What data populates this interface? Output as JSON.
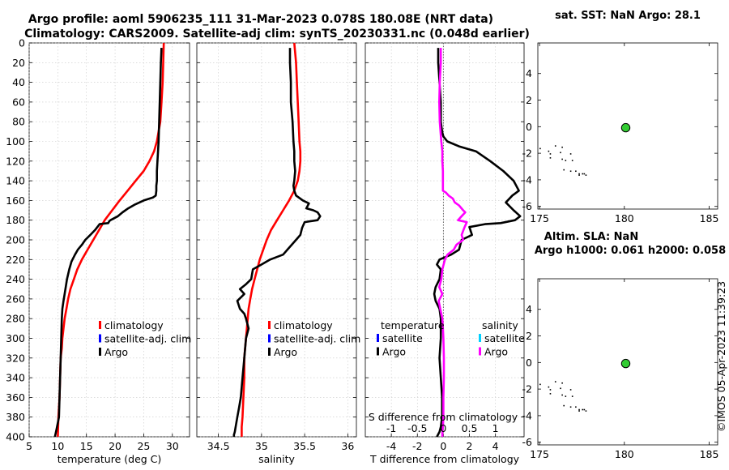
{
  "title_line1": "Argo profile: aoml 5906235_111 31-Mar-2023 0.078S 180.08E (NRT data)",
  "title_line2": "Climatology: CARS2009. Satellite-adj clim: synTS_20230331.nc (0.048d earlier)",
  "watermark": "©IMOS 05-Apr-2023 11:39:23",
  "colors": {
    "climatology": "#ff0000",
    "satellite_adj": "#0000ff",
    "argo": "#000000",
    "sal_satellite": "#00d0ff",
    "sal_argo": "#ff00ff",
    "marker": "#33cc33"
  },
  "chart_data": [
    {
      "id": "temperature",
      "type": "line",
      "xlabel": "temperature (deg C)",
      "xlim": [
        5,
        33
      ],
      "xticks": [
        5,
        10,
        15,
        20,
        25,
        30
      ],
      "ylim": [
        0,
        400
      ],
      "yticks": [
        0,
        20,
        40,
        60,
        80,
        100,
        120,
        140,
        160,
        180,
        200,
        220,
        240,
        260,
        280,
        300,
        320,
        340,
        360,
        380,
        400
      ],
      "ytick_labels_shown": true,
      "grid": true,
      "legend": [
        "climatology",
        "satellite-adj. clim",
        "Argo"
      ],
      "series": [
        {
          "name": "climatology",
          "color": "#ff0000",
          "x": [
            28.5,
            28.4,
            28.3,
            28.1,
            27.9,
            27.6,
            27.3,
            26.8,
            26.0,
            25.0,
            23.6,
            22.2,
            20.8,
            19.5,
            18.2,
            17.2,
            16.2,
            15.2,
            14.2,
            13.4,
            12.8,
            12.2,
            11.8,
            11.5,
            11.2,
            11.0,
            10.8,
            10.7,
            10.5,
            10.4,
            10.3,
            10.2,
            10.1,
            10.0
          ],
          "y": [
            0,
            20,
            40,
            60,
            80,
            90,
            100,
            110,
            120,
            130,
            140,
            150,
            160,
            170,
            180,
            190,
            200,
            210,
            220,
            230,
            240,
            250,
            260,
            270,
            280,
            290,
            300,
            310,
            320,
            340,
            360,
            370,
            380,
            400
          ]
        },
        {
          "name": "Argo",
          "color": "#000000",
          "x": [
            28.1,
            28.0,
            27.9,
            27.8,
            27.7,
            27.6,
            27.5,
            27.4,
            27.3,
            27.3,
            27.2,
            27.2,
            27.1,
            26.6,
            25.0,
            23.5,
            22.3,
            21.3,
            20.5,
            19.2,
            19.0,
            18.8,
            17.3,
            16.5,
            15.5,
            14.8,
            14.2,
            13.5,
            13.0,
            12.4,
            12.0,
            11.6,
            11.2,
            11.0,
            10.8,
            10.7,
            10.6,
            10.5,
            10.4,
            10.3,
            10.2,
            9.8,
            9.5
          ],
          "y": [
            5,
            20,
            40,
            60,
            80,
            100,
            110,
            120,
            130,
            140,
            145,
            150,
            155,
            157,
            160,
            164,
            168,
            172,
            176,
            180,
            181,
            183,
            184,
            190,
            196,
            200,
            205,
            210,
            215,
            222,
            230,
            240,
            255,
            262,
            270,
            280,
            300,
            320,
            340,
            360,
            380,
            392,
            400
          ]
        }
      ]
    },
    {
      "id": "salinity",
      "type": "line",
      "xlabel": "salinity",
      "xlim": [
        34.25,
        36.1
      ],
      "xticks": [
        34.5,
        35,
        35.5,
        36
      ],
      "ylim": [
        0,
        400
      ],
      "ytick_labels_shown": false,
      "grid": true,
      "legend": [
        "climatology",
        "satellite-adj. clim",
        "Argo"
      ],
      "series": [
        {
          "name": "climatology",
          "color": "#ff0000",
          "x": [
            35.38,
            35.4,
            35.41,
            35.42,
            35.43,
            35.44,
            35.45,
            35.45,
            35.44,
            35.42,
            35.38,
            35.32,
            35.25,
            35.18,
            35.11,
            35.06,
            35.02,
            34.98,
            34.95,
            34.92,
            34.89,
            34.87,
            34.85,
            34.84,
            34.83,
            34.82,
            34.81,
            34.8,
            34.8,
            34.79,
            34.78,
            34.77,
            34.77
          ],
          "y": [
            0,
            20,
            40,
            60,
            80,
            100,
            110,
            120,
            130,
            140,
            150,
            160,
            170,
            180,
            190,
            200,
            210,
            220,
            230,
            240,
            250,
            260,
            270,
            280,
            290,
            300,
            310,
            320,
            340,
            360,
            380,
            390,
            400
          ]
        },
        {
          "name": "Argo",
          "color": "#000000",
          "x": [
            35.33,
            35.33,
            35.34,
            35.34,
            35.36,
            35.37,
            35.38,
            35.38,
            35.39,
            35.38,
            35.37,
            35.38,
            35.4,
            35.48,
            35.55,
            35.52,
            35.6,
            35.65,
            35.68,
            35.65,
            35.5,
            35.47,
            35.45,
            35.4,
            35.35,
            35.3,
            35.25,
            35.1,
            35.0,
            34.9,
            34.88,
            34.82,
            34.75,
            34.8,
            34.72,
            34.75,
            34.8,
            34.82,
            34.85,
            34.82,
            34.8,
            34.78,
            34.76,
            34.74,
            34.72,
            34.7,
            34.69,
            34.68,
            34.68
          ],
          "y": [
            5,
            20,
            40,
            60,
            80,
            100,
            110,
            120,
            130,
            140,
            145,
            150,
            155,
            160,
            163,
            168,
            170,
            172,
            176,
            180,
            182,
            188,
            195,
            200,
            205,
            210,
            215,
            220,
            225,
            230,
            240,
            245,
            250,
            255,
            262,
            270,
            275,
            280,
            290,
            300,
            320,
            340,
            360,
            370,
            380,
            390,
            395,
            398,
            400
          ]
        }
      ]
    },
    {
      "id": "difference",
      "type": "line",
      "xlabel": "T difference from climatology",
      "xlabel_top": "S difference from climatology",
      "xlim": [
        -6,
        6.2
      ],
      "xticks": [
        -4,
        -2,
        0,
        2,
        4
      ],
      "xlim_top": [
        -1.5,
        1.55
      ],
      "xticks_top": [
        -1,
        -0.5,
        0,
        0.5,
        1
      ],
      "xtick_labels_top": [
        "-1",
        "-0.5",
        "0",
        "0.5",
        "1"
      ],
      "ylim": [
        0,
        400
      ],
      "ytick_labels_shown": false,
      "grid": true,
      "legend_temperature_title": "temperature",
      "legend_salinity_title": "salinity",
      "legend_temperature": [
        "satellite",
        "Argo"
      ],
      "legend_salinity": [
        "satellite",
        "Argo"
      ],
      "series": [
        {
          "name": "T diff Argo",
          "color": "#000000",
          "x": [
            -0.4,
            -0.4,
            -0.3,
            -0.2,
            -0.2,
            -0.1,
            0.0,
            0.3,
            1.2,
            2.5,
            3.6,
            4.6,
            5.4,
            5.8,
            5.3,
            4.8,
            5.4,
            5.9,
            5.5,
            4.4,
            3.2,
            2.0,
            2.2,
            1.4,
            1.2,
            0.6,
            -0.3,
            -0.5,
            -0.2,
            -0.3,
            -0.6,
            -0.7,
            -0.6,
            -0.3,
            -0.2,
            -0.2,
            -0.3,
            -0.2,
            -0.1,
            -0.1,
            -0.2,
            -0.3,
            -0.5
          ],
          "y": [
            5,
            20,
            40,
            60,
            80,
            90,
            95,
            100,
            105,
            110,
            120,
            130,
            140,
            150,
            155,
            162,
            170,
            176,
            180,
            183,
            184,
            187,
            195,
            200,
            210,
            215,
            220,
            225,
            230,
            240,
            248,
            255,
            262,
            270,
            280,
            300,
            320,
            340,
            360,
            380,
            390,
            395,
            400
          ]
        },
        {
          "name": "S diff Argo",
          "color": "#ff00ff",
          "axis": "top",
          "x": [
            -0.05,
            -0.05,
            -0.07,
            -0.08,
            -0.07,
            -0.04,
            -0.02,
            -0.02,
            -0.01,
            -0.01,
            -0.01,
            0.05,
            0.1,
            0.18,
            0.22,
            0.3,
            0.38,
            0.42,
            0.35,
            0.28,
            0.45,
            0.4,
            0.35,
            0.38,
            0.25,
            0.2,
            0.08,
            0.03,
            -0.02,
            -0.04,
            -0.08,
            -0.02,
            -0.09,
            -0.06,
            -0.02,
            -0.01,
            0.0,
            0.01,
            0.01,
            0.0,
            0.0,
            -0.01,
            -0.02,
            -0.02
          ],
          "y": [
            5,
            20,
            40,
            60,
            80,
            100,
            110,
            120,
            130,
            140,
            150,
            152,
            155,
            158,
            162,
            165,
            170,
            172,
            176,
            180,
            182,
            188,
            195,
            200,
            205,
            210,
            215,
            220,
            230,
            240,
            248,
            255,
            262,
            270,
            280,
            290,
            300,
            320,
            340,
            360,
            380,
            390,
            395,
            400
          ]
        }
      ]
    },
    {
      "id": "sst_map",
      "type": "scatter",
      "title": "sat. SST: NaN Argo: 28.1",
      "xlim": [
        174.9,
        185.5
      ],
      "xticks": [
        175,
        180,
        185
      ],
      "ylim": [
        -6.2,
        6.3
      ],
      "yticks": [
        -6,
        -4,
        -2,
        0,
        2,
        4
      ],
      "argo_point": {
        "x": 180.08,
        "y": -0.078
      },
      "coast_dots": [
        [
          175.0,
          -1.6
        ],
        [
          175.5,
          -1.8
        ],
        [
          175.6,
          -2.0
        ],
        [
          175.9,
          -1.4
        ],
        [
          176.3,
          -1.5
        ],
        [
          176.2,
          -1.9
        ],
        [
          176.8,
          -2.0
        ],
        [
          175.6,
          -2.3
        ],
        [
          176.3,
          -2.4
        ],
        [
          176.5,
          -2.5
        ],
        [
          176.9,
          -2.5
        ],
        [
          176.4,
          -3.2
        ],
        [
          177.5,
          -3.5
        ],
        [
          176.8,
          -3.3
        ],
        [
          177.1,
          -3.3
        ],
        [
          177.3,
          -3.5
        ],
        [
          177.6,
          -3.5
        ],
        [
          177.3,
          -3.6
        ],
        [
          177.7,
          -3.6
        ]
      ]
    },
    {
      "id": "sla_map",
      "type": "scatter",
      "title": "Altim. SLA: NaN",
      "subtitle": "Argo h1000: 0.061 h2000: 0.058",
      "xlim": [
        174.9,
        185.5
      ],
      "xticks": [
        175,
        180,
        185
      ],
      "ylim": [
        -6.2,
        6.3
      ],
      "yticks": [
        -6,
        -4,
        -2,
        0,
        2,
        4
      ],
      "argo_point": {
        "x": 180.08,
        "y": -0.078
      },
      "coast_dots": [
        [
          175.0,
          -1.6
        ],
        [
          175.5,
          -1.8
        ],
        [
          175.6,
          -2.0
        ],
        [
          175.9,
          -1.4
        ],
        [
          176.3,
          -1.5
        ],
        [
          176.2,
          -1.9
        ],
        [
          176.8,
          -2.0
        ],
        [
          175.6,
          -2.3
        ],
        [
          176.3,
          -2.4
        ],
        [
          176.5,
          -2.5
        ],
        [
          176.9,
          -2.5
        ],
        [
          176.4,
          -3.2
        ],
        [
          177.5,
          -3.5
        ],
        [
          176.8,
          -3.3
        ],
        [
          177.1,
          -3.3
        ],
        [
          177.3,
          -3.5
        ],
        [
          177.6,
          -3.5
        ],
        [
          177.3,
          -3.6
        ],
        [
          177.7,
          -3.6
        ]
      ]
    }
  ]
}
